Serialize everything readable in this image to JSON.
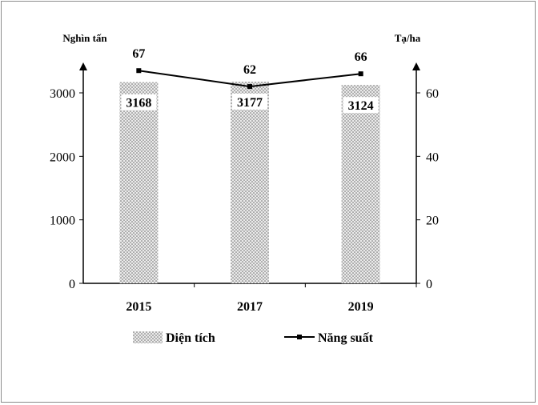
{
  "chart_data": {
    "type": "bar",
    "categories": [
      "2015",
      "2017",
      "2019"
    ],
    "series": [
      {
        "name": "Diện tích",
        "kind": "bar",
        "axis": "left",
        "values": [
          3168,
          3177,
          3124
        ],
        "labels": [
          "3168",
          "3177",
          "3124"
        ]
      },
      {
        "name": "Năng suất",
        "kind": "line",
        "axis": "right",
        "values": [
          67,
          62,
          66
        ],
        "labels": [
          "67",
          "62",
          "66"
        ]
      }
    ],
    "left_axis": {
      "label": "Nghìn tấn",
      "ylim": [
        0,
        3000
      ],
      "ticks": [
        "0",
        "1000",
        "2000",
        "3000"
      ]
    },
    "right_axis": {
      "label": "Tạ/ha",
      "ylim": [
        0,
        60
      ],
      "ticks": [
        "0",
        "20",
        "40",
        "60"
      ]
    },
    "legend_position": "bottom",
    "grid": false,
    "colors": {
      "bar_fill": "#e6e6e6",
      "bar_dots": "#6a6a6a",
      "line": "#000000"
    }
  }
}
